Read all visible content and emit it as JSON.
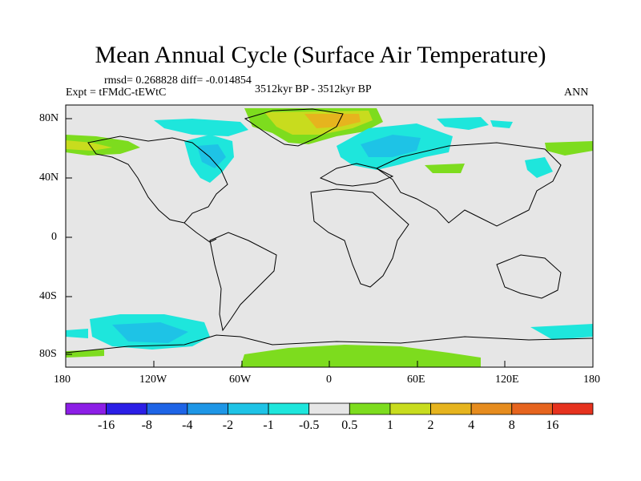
{
  "title": "Mean Annual Cycle (Surface Air Temperature)",
  "stats": "rmsd= 0.268828 diff= -0.014854",
  "experiment": "Expt = tFMdC-tEWtC",
  "period": "3512kyr BP - 3512kyr BP",
  "season": "ANN",
  "lat_ticks": [
    "80N",
    "40N",
    "0",
    "40S",
    "80S"
  ],
  "lon_ticks": [
    "180",
    "120W",
    "60W",
    "0",
    "60E",
    "120E",
    "180"
  ],
  "colorbar": {
    "colors": [
      "#8c1ee6",
      "#2b1ee6",
      "#1e64e6",
      "#1e96e6",
      "#1ec3e6",
      "#1ee6dc",
      "#e6e6e6",
      "#7ddc1e",
      "#c8dc1e",
      "#e6b41e",
      "#e68c1e",
      "#e6641e",
      "#e6321e"
    ],
    "labels": [
      "-16",
      "-8",
      "-4",
      "-2",
      "-1",
      "-0.5",
      "0.5",
      "1",
      "2",
      "4",
      "8",
      "16"
    ]
  }
}
